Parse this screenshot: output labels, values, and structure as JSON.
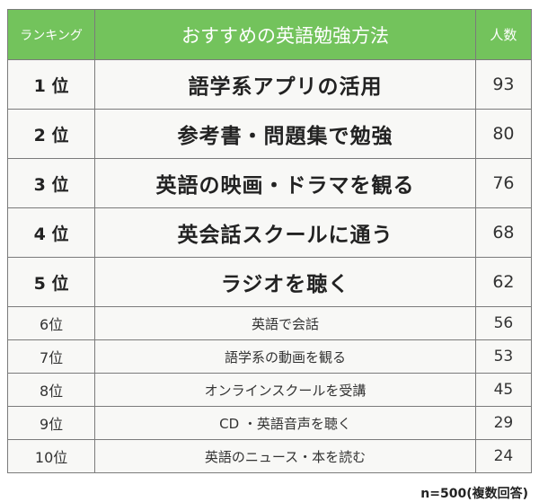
{
  "table": {
    "headers": {
      "rank": "ランキング",
      "method": "おすすめの英語勉強方法",
      "count": "人数"
    },
    "rows": [
      {
        "rank": "1 位",
        "method": "語学系アプリの活用",
        "count": "93"
      },
      {
        "rank": "2 位",
        "method": "参考書・問題集で勉強",
        "count": "80"
      },
      {
        "rank": "3 位",
        "method": "英語の映画・ドラマを観る",
        "count": "76"
      },
      {
        "rank": "4 位",
        "method": "英会話スクールに通う",
        "count": "68"
      },
      {
        "rank": "5 位",
        "method": "ラジオを聴く",
        "count": "62"
      },
      {
        "rank": "6位",
        "method": "英語で会話",
        "count": "56"
      },
      {
        "rank": "7位",
        "method": "語学系の動画を観る",
        "count": "53"
      },
      {
        "rank": "8位",
        "method": "オンラインスクールを受講",
        "count": "45"
      },
      {
        "rank": "9位",
        "method": "CD ・英語音声を聴く",
        "count": "29"
      },
      {
        "rank": "10位",
        "method": "英語のニュース・本を読む",
        "count": "24"
      }
    ],
    "header_color": "#73c35c",
    "header_text_color": "#ffffff"
  },
  "footnote": "n=500(複数回答)",
  "chart_data": {
    "type": "table",
    "title": "おすすめの英語勉強方法",
    "columns": [
      "ランキング",
      "おすすめの英語勉強方法",
      "人数"
    ],
    "categories": [
      "語学系アプリの活用",
      "参考書・問題集で勉強",
      "英語の映画・ドラマを観る",
      "英会話スクールに通う",
      "ラジオを聴く",
      "英語で会話",
      "語学系の動画を観る",
      "オンラインスクールを受講",
      "CD ・英語音声を聴く",
      "英語のニュース・本を読む"
    ],
    "ranks": [
      1,
      2,
      3,
      4,
      5,
      6,
      7,
      8,
      9,
      10
    ],
    "values": [
      93,
      80,
      76,
      68,
      62,
      56,
      53,
      45,
      29,
      24
    ],
    "note": "n=500(複数回答)"
  }
}
